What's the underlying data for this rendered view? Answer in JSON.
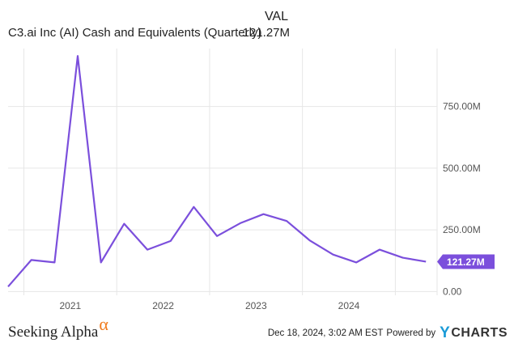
{
  "legend": {
    "column_header": "VAL",
    "series_name": "C3.ai Inc (AI) Cash and Equivalents (Quarterly)",
    "series_value": "121.27M"
  },
  "chart_data": {
    "type": "line",
    "title": "C3.ai Inc (AI) Cash and Equivalents (Quarterly)",
    "xlabel": "",
    "ylabel": "",
    "ylim": [
      -15,
      985
    ],
    "xlim": [
      2020.33,
      2024.95
    ],
    "grid": true,
    "y_ticks": [
      {
        "value": 0,
        "label": "0.00"
      },
      {
        "value": 250,
        "label": "250.00M"
      },
      {
        "value": 500,
        "label": "500.00M"
      },
      {
        "value": 750,
        "label": "750.00M"
      }
    ],
    "x_ticks": [
      {
        "value": 2021,
        "label": "2021"
      },
      {
        "value": 2022,
        "label": "2022"
      },
      {
        "value": 2023,
        "label": "2023"
      },
      {
        "value": 2024,
        "label": "2024"
      }
    ],
    "x_minor_gridlines": [
      2020.5,
      2021.5,
      2022.5,
      2023.5,
      2024.5
    ],
    "series": [
      {
        "name": "C3.ai Inc (AI) Cash and Equivalents (Quarterly)",
        "color": "#7b4fdc",
        "x": [
          2020.33,
          2020.58,
          2020.83,
          2021.08,
          2021.33,
          2021.58,
          2021.83,
          2022.08,
          2022.33,
          2022.58,
          2022.83,
          2023.08,
          2023.33,
          2023.58,
          2023.83,
          2024.08,
          2024.33,
          2024.58,
          2024.83
        ],
        "values": [
          20,
          128,
          118,
          955,
          118,
          275,
          170,
          205,
          343,
          225,
          277,
          314,
          286,
          207,
          150,
          118,
          170,
          137,
          121.27
        ]
      }
    ],
    "last_value_label": "121.27M"
  },
  "footer": {
    "logo_text": "Seeking Alpha",
    "logo_symbol": "α",
    "timestamp": "Dec 18, 2024, 3:02 AM EST",
    "powered_by": "Powered by",
    "ycharts_y": "Y",
    "ycharts_text": "CHARTS"
  },
  "colors": {
    "line": "#7b4fdc",
    "grid": "#e6e6e6",
    "axis_text": "#555555",
    "alpha_accent": "#f07b1d",
    "ycharts_accent": "#1a9bd7"
  }
}
